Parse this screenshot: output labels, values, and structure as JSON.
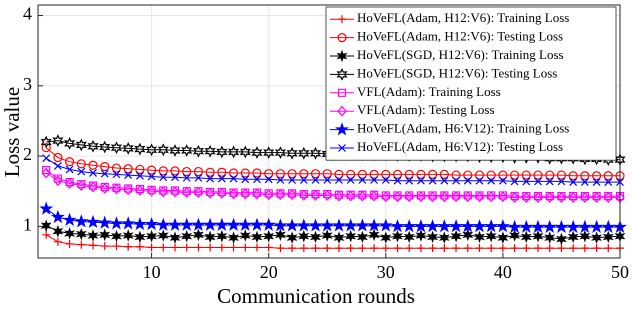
{
  "chart_data": {
    "type": "line",
    "xlabel": "Communication rounds",
    "ylabel": "Loss value",
    "x": [
      1,
      2,
      3,
      4,
      5,
      6,
      7,
      8,
      9,
      10,
      11,
      12,
      13,
      14,
      15,
      16,
      17,
      18,
      19,
      20,
      21,
      22,
      23,
      24,
      25,
      26,
      27,
      28,
      29,
      30,
      31,
      32,
      33,
      34,
      35,
      36,
      37,
      38,
      39,
      40,
      41,
      42,
      43,
      44,
      45,
      46,
      47,
      48,
      49,
      50
    ],
    "xlim": [
      0.3,
      50
    ],
    "xticks": [
      10,
      20,
      30,
      40,
      50
    ],
    "ylim": [
      0.55,
      4.15
    ],
    "yticks": [
      1,
      2,
      3,
      4
    ],
    "grid": true,
    "legend": "upper right",
    "series": [
      {
        "name": "HoVeFL(Adam, H12:V6): Training Loss",
        "color": "#ff0000",
        "marker": "plus",
        "values": [
          0.88,
          0.78,
          0.75,
          0.74,
          0.73,
          0.72,
          0.72,
          0.71,
          0.71,
          0.7,
          0.7,
          0.7,
          0.7,
          0.7,
          0.7,
          0.7,
          0.7,
          0.7,
          0.7,
          0.7,
          0.69,
          0.69,
          0.69,
          0.69,
          0.69,
          0.69,
          0.69,
          0.69,
          0.69,
          0.69,
          0.69,
          0.69,
          0.69,
          0.69,
          0.69,
          0.69,
          0.69,
          0.69,
          0.69,
          0.69,
          0.69,
          0.69,
          0.69,
          0.69,
          0.69,
          0.69,
          0.69,
          0.69,
          0.69,
          0.69
        ]
      },
      {
        "name": "HoVeFL(Adam, H12:V6): Testing Loss",
        "color": "#ff0000",
        "marker": "circle",
        "values": [
          2.12,
          1.98,
          1.92,
          1.89,
          1.87,
          1.85,
          1.83,
          1.82,
          1.81,
          1.8,
          1.79,
          1.79,
          1.78,
          1.78,
          1.77,
          1.77,
          1.76,
          1.76,
          1.76,
          1.75,
          1.75,
          1.75,
          1.75,
          1.75,
          1.75,
          1.74,
          1.74,
          1.74,
          1.74,
          1.74,
          1.74,
          1.74,
          1.74,
          1.74,
          1.74,
          1.73,
          1.73,
          1.73,
          1.73,
          1.73,
          1.73,
          1.73,
          1.73,
          1.73,
          1.73,
          1.72,
          1.72,
          1.72,
          1.72,
          1.72
        ]
      },
      {
        "name": "HoVeFL(SGD, H12:V6): Training Loss",
        "color": "#000000",
        "marker": "asterisk",
        "values": [
          1.01,
          0.93,
          0.9,
          0.89,
          0.87,
          0.88,
          0.86,
          0.87,
          0.85,
          0.86,
          0.87,
          0.84,
          0.86,
          0.88,
          0.85,
          0.86,
          0.84,
          0.87,
          0.85,
          0.86,
          0.88,
          0.84,
          0.86,
          0.85,
          0.87,
          0.84,
          0.86,
          0.85,
          0.88,
          0.84,
          0.86,
          0.85,
          0.87,
          0.85,
          0.84,
          0.86,
          0.88,
          0.85,
          0.86,
          0.84,
          0.87,
          0.85,
          0.86,
          0.84,
          0.82,
          0.85,
          0.86,
          0.84,
          0.85,
          0.86
        ]
      },
      {
        "name": "HoVeFL(SGD, H12:V6): Testing Loss",
        "color": "#000000",
        "marker": "hexagram",
        "values": [
          2.2,
          2.22,
          2.18,
          2.16,
          2.14,
          2.13,
          2.12,
          2.11,
          2.1,
          2.09,
          2.09,
          2.08,
          2.08,
          2.07,
          2.07,
          2.06,
          2.06,
          2.06,
          2.05,
          2.05,
          2.05,
          2.04,
          2.04,
          2.04,
          2.03,
          2.03,
          2.03,
          2.02,
          2.02,
          2.02,
          2.01,
          2.01,
          2.01,
          2.0,
          2.0,
          2.0,
          2.0,
          1.99,
          1.99,
          1.99,
          1.98,
          1.98,
          1.98,
          1.97,
          1.97,
          1.97,
          1.96,
          1.96,
          1.95,
          1.95
        ]
      },
      {
        "name": "VFL(Adam): Training Loss",
        "color": "#ff00ff",
        "marker": "square",
        "values": [
          1.8,
          1.68,
          1.63,
          1.6,
          1.58,
          1.56,
          1.55,
          1.54,
          1.53,
          1.52,
          1.51,
          1.51,
          1.5,
          1.5,
          1.49,
          1.49,
          1.48,
          1.48,
          1.48,
          1.47,
          1.47,
          1.47,
          1.46,
          1.46,
          1.46,
          1.45,
          1.45,
          1.45,
          1.45,
          1.44,
          1.44,
          1.44,
          1.44,
          1.44,
          1.44,
          1.44,
          1.44,
          1.44,
          1.44,
          1.44,
          1.43,
          1.43,
          1.43,
          1.43,
          1.43,
          1.43,
          1.43,
          1.43,
          1.43,
          1.43
        ]
      },
      {
        "name": "VFL(Adam): Testing Loss",
        "color": "#ff00ff",
        "marker": "diamond",
        "values": [
          1.76,
          1.65,
          1.61,
          1.58,
          1.56,
          1.54,
          1.53,
          1.52,
          1.51,
          1.5,
          1.49,
          1.49,
          1.48,
          1.48,
          1.47,
          1.47,
          1.46,
          1.46,
          1.46,
          1.45,
          1.45,
          1.45,
          1.44,
          1.44,
          1.44,
          1.43,
          1.43,
          1.43,
          1.43,
          1.42,
          1.42,
          1.42,
          1.42,
          1.42,
          1.42,
          1.42,
          1.42,
          1.42,
          1.42,
          1.42,
          1.41,
          1.41,
          1.41,
          1.41,
          1.41,
          1.41,
          1.41,
          1.41,
          1.41,
          1.41
        ]
      },
      {
        "name": "HoVeFL(Adam, H6:V12): Training Loss",
        "color": "#0000ff",
        "marker": "star",
        "values": [
          1.25,
          1.13,
          1.09,
          1.07,
          1.06,
          1.05,
          1.04,
          1.04,
          1.03,
          1.03,
          1.02,
          1.02,
          1.02,
          1.02,
          1.02,
          1.02,
          1.02,
          1.02,
          1.02,
          1.02,
          1.01,
          1.01,
          1.01,
          1.01,
          1.01,
          1.01,
          1.01,
          1.01,
          1.01,
          1.01,
          1.0,
          1.0,
          1.0,
          1.0,
          1.0,
          1.0,
          1.0,
          1.0,
          1.0,
          1.0,
          0.99,
          0.99,
          0.99,
          0.99,
          0.99,
          0.99,
          0.99,
          0.99,
          0.99,
          0.99
        ]
      },
      {
        "name": "HoVeFL(Adam, H6:V12): Testing Loss",
        "color": "#0000ff",
        "marker": "x",
        "values": [
          1.97,
          1.86,
          1.81,
          1.78,
          1.76,
          1.75,
          1.74,
          1.73,
          1.72,
          1.71,
          1.7,
          1.7,
          1.69,
          1.69,
          1.68,
          1.68,
          1.68,
          1.67,
          1.67,
          1.67,
          1.66,
          1.66,
          1.66,
          1.66,
          1.66,
          1.66,
          1.66,
          1.66,
          1.66,
          1.66,
          1.65,
          1.65,
          1.65,
          1.65,
          1.65,
          1.65,
          1.65,
          1.65,
          1.65,
          1.65,
          1.64,
          1.64,
          1.64,
          1.64,
          1.64,
          1.63,
          1.63,
          1.63,
          1.63,
          1.63
        ]
      }
    ]
  }
}
